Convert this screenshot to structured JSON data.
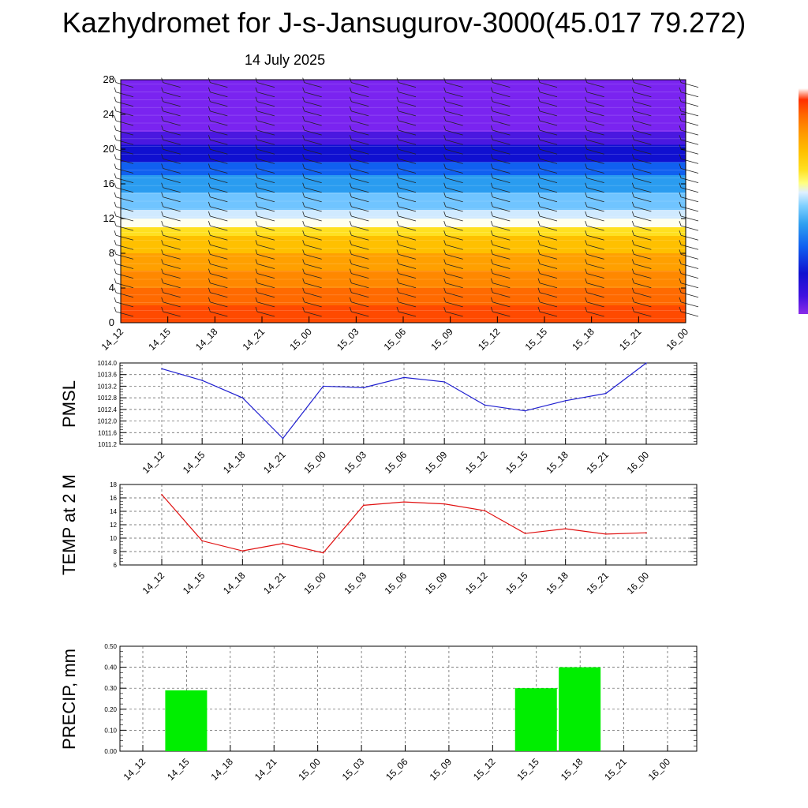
{
  "header": {
    "title": "Kazhydromet for J-s-Jansugurov-3000(45.017 79.272)",
    "subtitle": "14 July 2025"
  },
  "colors": {
    "pmsl_line": "#1f1fd0",
    "temp_line": "#e01010",
    "precip_bar": "#00ee00",
    "grid": "#555555",
    "colorbar": [
      "#ff4000",
      "#ff6a00",
      "#ff9a00",
      "#ffc000",
      "#ffe020",
      "#ffff80",
      "#e0f0ff",
      "#80d0ff",
      "#30a0f0",
      "#1060f0",
      "#1010d0",
      "#4010e0",
      "#7020f0",
      "#8a2ce8"
    ]
  },
  "chart_data": [
    {
      "type": "heatmap",
      "name": "vertical-profile",
      "title": "",
      "xlabel": "",
      "ylabel": "",
      "x": [
        "14_12",
        "14_15",
        "14_18",
        "14_21",
        "15_00",
        "15_03",
        "15_06",
        "15_09",
        "15_12",
        "15_15",
        "15_18",
        "15_21",
        "16_00"
      ],
      "yticks": [
        0,
        4,
        8,
        12,
        16,
        20,
        24,
        28
      ],
      "ylim": [
        0,
        28
      ],
      "color_bands": [
        {
          "y0": 0,
          "y1": 2,
          "color": "#ff4a00"
        },
        {
          "y0": 2,
          "y1": 4,
          "color": "#ff6a00"
        },
        {
          "y0": 4,
          "y1": 6,
          "color": "#ff8800"
        },
        {
          "y0": 6,
          "y1": 8,
          "color": "#ffa000"
        },
        {
          "y0": 8,
          "y1": 10,
          "color": "#ffc000"
        },
        {
          "y0": 10,
          "y1": 11,
          "color": "#ffe020"
        },
        {
          "y0": 11,
          "y1": 12,
          "color": "#fffff0"
        },
        {
          "y0": 12,
          "y1": 13,
          "color": "#d0eaff"
        },
        {
          "y0": 13,
          "y1": 15,
          "color": "#70c4ff"
        },
        {
          "y0": 15,
          "y1": 17,
          "color": "#2a9cf0"
        },
        {
          "y0": 17,
          "y1": 18.5,
          "color": "#1060f0"
        },
        {
          "y0": 18.5,
          "y1": 20.5,
          "color": "#1010d0"
        },
        {
          "y0": 20.5,
          "y1": 22,
          "color": "#4a18e0"
        },
        {
          "y0": 22,
          "y1": 28,
          "color": "#7a24f0"
        }
      ]
    },
    {
      "type": "line",
      "name": "pmsl",
      "ylabel": "PMSL",
      "categories": [
        "14_12",
        "14_15",
        "14_18",
        "14_21",
        "15_00",
        "15_03",
        "15_06",
        "15_09",
        "15_12",
        "15_15",
        "15_18",
        "15_21",
        "16_00"
      ],
      "values": [
        1013.8,
        1013.4,
        1012.8,
        1011.4,
        1013.2,
        1013.15,
        1013.5,
        1013.35,
        1012.55,
        1012.35,
        1012.7,
        1012.95,
        1014.0
      ],
      "ylim": [
        1011.2,
        1014.0
      ],
      "yticks": [
        "1011.2",
        "1011.6",
        "1012.0",
        "1012.4",
        "1012.8",
        "1013.2",
        "1013.6",
        "1014.0"
      ]
    },
    {
      "type": "line",
      "name": "temp2m",
      "ylabel": "TEMP at 2 M",
      "categories": [
        "14_12",
        "14_15",
        "14_18",
        "14_21",
        "15_00",
        "15_03",
        "15_06",
        "15_09",
        "15_12",
        "15_15",
        "15_18",
        "15_21",
        "16_00"
      ],
      "values": [
        16.5,
        9.6,
        8.1,
        9.2,
        7.8,
        14.9,
        15.4,
        15.1,
        14.1,
        10.7,
        11.4,
        10.6,
        10.8
      ],
      "ylim": [
        6,
        18
      ],
      "yticks": [
        "6",
        "8",
        "10",
        "12",
        "14",
        "16",
        "18"
      ]
    },
    {
      "type": "bar",
      "name": "precip",
      "ylabel": "PRECIP, mm",
      "categories": [
        "14_12",
        "14_15",
        "14_18",
        "14_21",
        "15_00",
        "15_03",
        "15_06",
        "15_09",
        "15_12",
        "15_15",
        "15_18",
        "15_21",
        "16_00"
      ],
      "values": [
        0,
        0.29,
        0,
        0,
        0,
        0,
        0,
        0,
        0,
        0.3,
        0.4,
        0,
        0
      ],
      "ylim": [
        0,
        0.5
      ],
      "yticks": [
        "0.00",
        "0.10",
        "0.20",
        "0.30",
        "0.40",
        "0.50"
      ]
    }
  ]
}
